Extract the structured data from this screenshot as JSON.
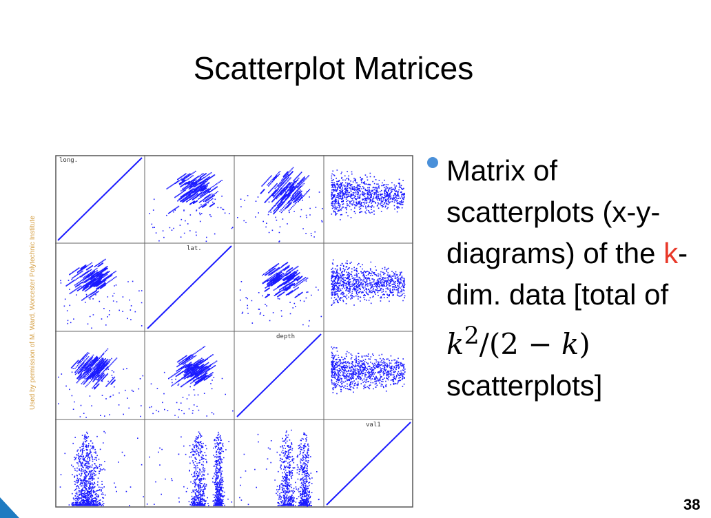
{
  "slide": {
    "title": "Scatterplot Matrices",
    "credit": "Used by permission of M. Ward, Worcester Polytechnic Institute",
    "page_number": "38",
    "bullet": {
      "part1": "Matrix of scatterplots (x-y-diagrams) of the ",
      "highlight": "k",
      "part2": "-dim. data [total of ",
      "formula_k": "k",
      "formula_exp": "2",
      "formula_mid": "/(2 − ",
      "formula_k2": "k",
      "formula_end": ")",
      "part3": " scatterplots]"
    },
    "colors": {
      "points": "#1a1aff",
      "accent": "#4a90d9",
      "highlight": "#e8392a",
      "corner": "#1f7bc1"
    }
  },
  "chart_data": {
    "type": "scatter",
    "layout": "scatterplot-matrix",
    "variables": [
      "long.",
      "lat.",
      "depth",
      "val1"
    ],
    "diagonal_labels": [
      "long.",
      "lat.",
      "depth",
      "val1"
    ],
    "point_color": "#1a1aff",
    "grid": true
  }
}
